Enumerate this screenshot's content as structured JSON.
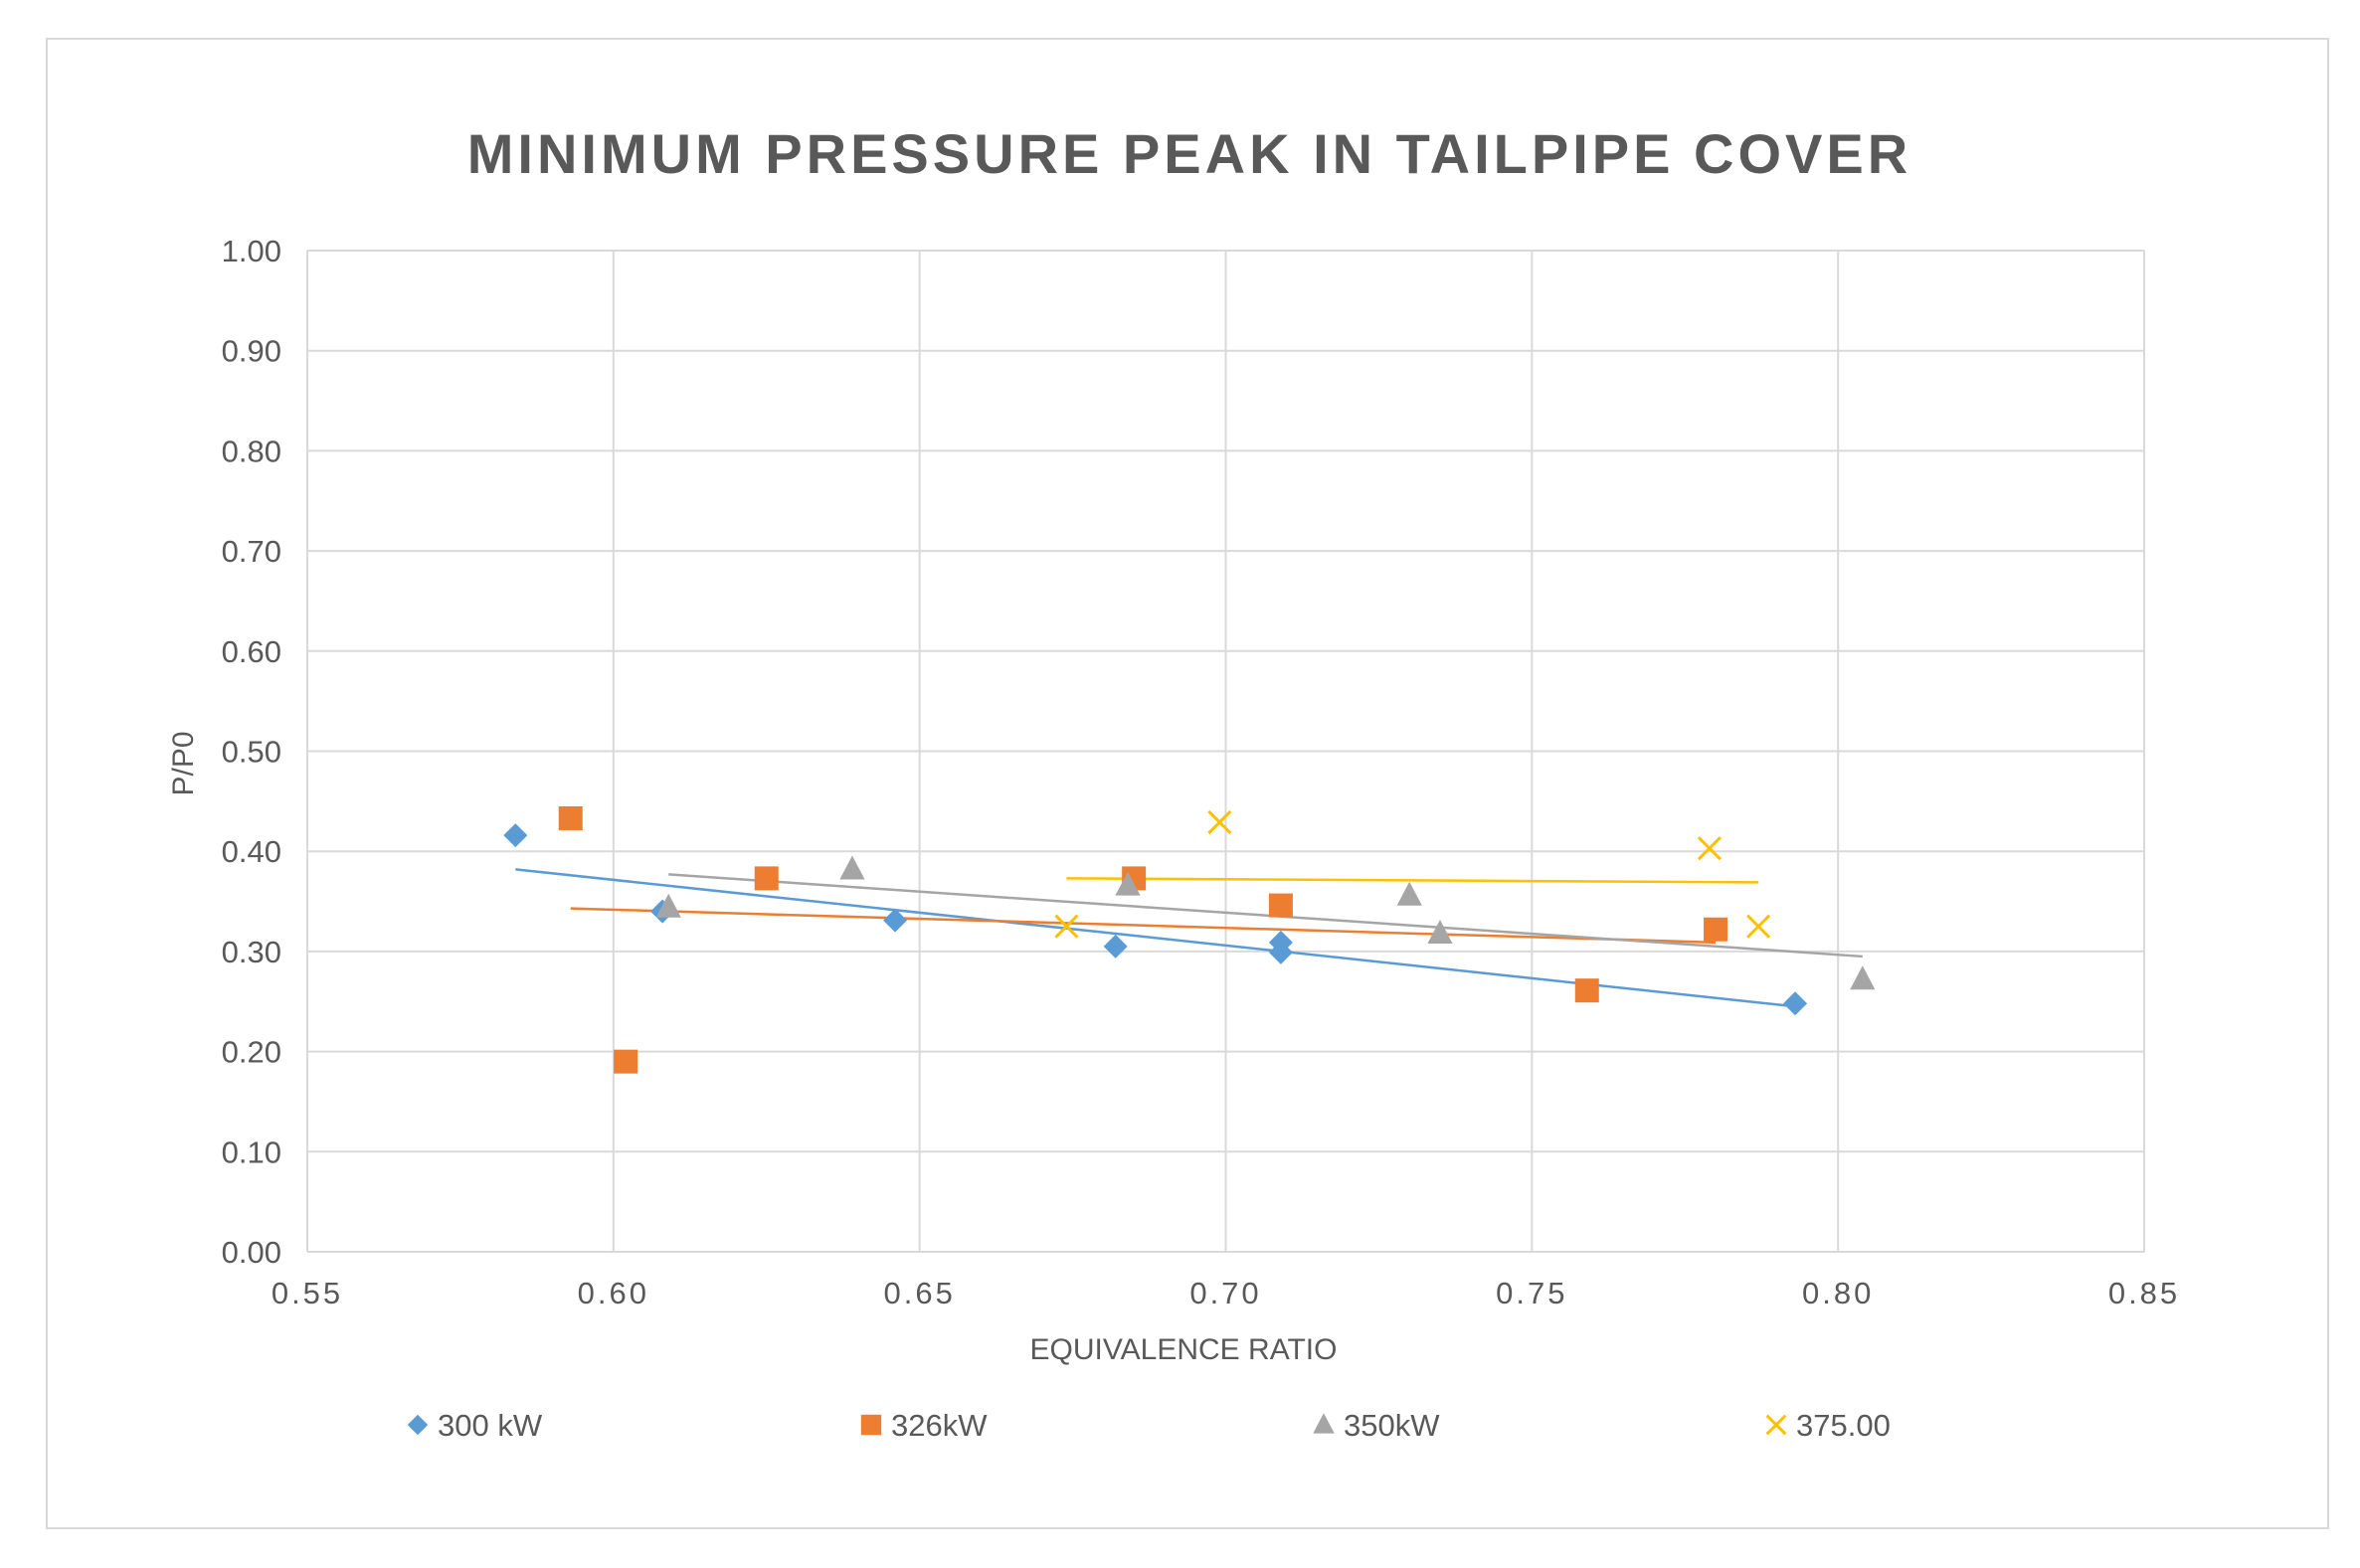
{
  "chart_data": {
    "type": "scatter",
    "title": "MINIMUM PRESSURE PEAK IN TAILPIPE COVER",
    "xlabel": "EQUIVALENCE RATIO",
    "ylabel": "P/P0",
    "xlim": [
      0.55,
      0.85
    ],
    "ylim": [
      0.0,
      1.0
    ],
    "x_ticks": [
      0.55,
      0.6,
      0.65,
      0.7,
      0.75,
      0.8,
      0.85
    ],
    "x_tick_labels": [
      "0.55",
      "0.60",
      "0.65",
      "0.70",
      "0.75",
      "0.80",
      "0.85"
    ],
    "y_ticks": [
      0.0,
      0.1,
      0.2,
      0.3,
      0.4,
      0.5,
      0.6,
      0.7,
      0.8,
      0.9,
      1.0
    ],
    "y_tick_labels": [
      "0.00",
      "0.10",
      "0.20",
      "0.30",
      "0.40",
      "0.50",
      "0.60",
      "0.70",
      "0.80",
      "0.90",
      "1.00"
    ],
    "grid": true,
    "legend_position": "bottom",
    "series": [
      {
        "name": "300 kW",
        "marker": "diamond",
        "color": "#5b9bd5",
        "x": [
          0.584,
          0.608,
          0.646,
          0.682,
          0.709,
          0.709,
          0.793
        ],
        "y": [
          0.416,
          0.34,
          0.331,
          0.305,
          0.299,
          0.309,
          0.248
        ],
        "trendline": {
          "x": [
            0.584,
            0.793
          ],
          "y": [
            0.382,
            0.245
          ]
        }
      },
      {
        "name": "326kW",
        "marker": "square",
        "color": "#ed7d31",
        "x": [
          0.593,
          0.602,
          0.625,
          0.685,
          0.709,
          0.759,
          0.78
        ],
        "y": [
          0.433,
          0.19,
          0.373,
          0.373,
          0.346,
          0.261,
          0.322
        ],
        "trendline": {
          "x": [
            0.593,
            0.78
          ],
          "y": [
            0.343,
            0.309
          ]
        }
      },
      {
        "name": "350kW",
        "marker": "triangle",
        "color": "#a5a5a5",
        "x": [
          0.609,
          0.639,
          0.684,
          0.73,
          0.735,
          0.804
        ],
        "y": [
          0.344,
          0.382,
          0.366,
          0.356,
          0.318,
          0.272
        ],
        "trendline": {
          "x": [
            0.609,
            0.804
          ],
          "y": [
            0.377,
            0.295
          ]
        }
      },
      {
        "name": "375.00",
        "marker": "x",
        "color": "#ffc000",
        "x": [
          0.674,
          0.699,
          0.779,
          0.787
        ],
        "y": [
          0.325,
          0.429,
          0.403,
          0.325
        ],
        "trendline": {
          "x": [
            0.674,
            0.787
          ],
          "y": [
            0.373,
            0.369
          ]
        }
      }
    ]
  }
}
